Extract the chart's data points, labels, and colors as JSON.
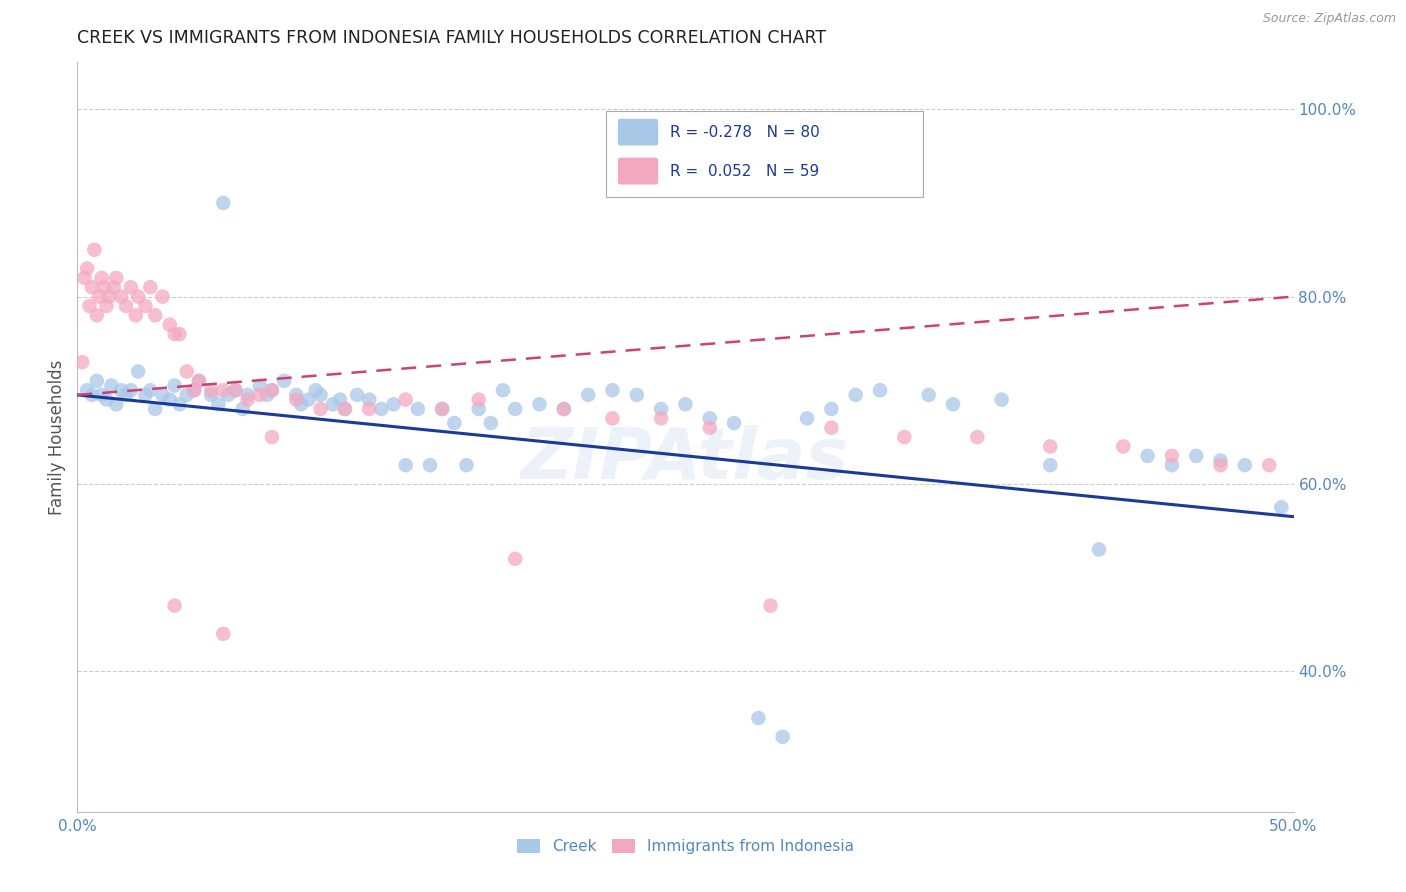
{
  "title": "CREEK VS IMMIGRANTS FROM INDONESIA FAMILY HOUSEHOLDS CORRELATION CHART",
  "source": "Source: ZipAtlas.com",
  "ylabel": "Family Households",
  "xlim": [
    0.0,
    0.5
  ],
  "ylim": [
    0.25,
    1.05
  ],
  "x_ticks": [
    0.0,
    0.1,
    0.2,
    0.3,
    0.4,
    0.5
  ],
  "x_tick_labels": [
    "0.0%",
    "",
    "",
    "",
    "",
    "50.0%"
  ],
  "y_tick_labels_right": [
    "40.0%",
    "60.0%",
    "80.0%",
    "100.0%"
  ],
  "y_ticks_right": [
    0.4,
    0.6,
    0.8,
    1.0
  ],
  "creek_color": "#a8c8e8",
  "indonesia_color": "#f4a8c0",
  "creek_line_color": "#1a3a9a",
  "indonesia_line_color": "#d04070",
  "watermark": "ZIPAtlas",
  "background_color": "#ffffff",
  "grid_color": "#cccccc",
  "right_axis_color": "#5588bb",
  "title_color": "#222222",
  "creek_scatter_x": [
    0.004,
    0.006,
    0.008,
    0.01,
    0.012,
    0.014,
    0.016,
    0.018,
    0.02,
    0.022,
    0.025,
    0.028,
    0.03,
    0.032,
    0.035,
    0.038,
    0.04,
    0.042,
    0.045,
    0.048,
    0.05,
    0.055,
    0.058,
    0.06,
    0.062,
    0.065,
    0.068,
    0.07,
    0.075,
    0.078,
    0.08,
    0.085,
    0.09,
    0.092,
    0.095,
    0.098,
    0.1,
    0.105,
    0.108,
    0.11,
    0.115,
    0.12,
    0.125,
    0.13,
    0.135,
    0.14,
    0.145,
    0.15,
    0.155,
    0.16,
    0.165,
    0.17,
    0.175,
    0.18,
    0.19,
    0.2,
    0.21,
    0.22,
    0.23,
    0.24,
    0.25,
    0.26,
    0.27,
    0.28,
    0.29,
    0.3,
    0.31,
    0.32,
    0.33,
    0.35,
    0.36,
    0.38,
    0.4,
    0.42,
    0.44,
    0.45,
    0.46,
    0.47,
    0.48,
    0.495
  ],
  "creek_scatter_y": [
    0.7,
    0.695,
    0.71,
    0.695,
    0.69,
    0.705,
    0.685,
    0.7,
    0.695,
    0.7,
    0.72,
    0.695,
    0.7,
    0.68,
    0.695,
    0.69,
    0.705,
    0.685,
    0.695,
    0.7,
    0.71,
    0.695,
    0.685,
    0.9,
    0.695,
    0.7,
    0.68,
    0.695,
    0.705,
    0.695,
    0.7,
    0.71,
    0.695,
    0.685,
    0.69,
    0.7,
    0.695,
    0.685,
    0.69,
    0.68,
    0.695,
    0.69,
    0.68,
    0.685,
    0.62,
    0.68,
    0.62,
    0.68,
    0.665,
    0.62,
    0.68,
    0.665,
    0.7,
    0.68,
    0.685,
    0.68,
    0.695,
    0.7,
    0.695,
    0.68,
    0.685,
    0.67,
    0.665,
    0.35,
    0.33,
    0.67,
    0.68,
    0.695,
    0.7,
    0.695,
    0.685,
    0.69,
    0.62,
    0.53,
    0.63,
    0.62,
    0.63,
    0.625,
    0.62,
    0.575
  ],
  "indonesia_scatter_x": [
    0.002,
    0.003,
    0.004,
    0.005,
    0.006,
    0.007,
    0.008,
    0.009,
    0.01,
    0.011,
    0.012,
    0.013,
    0.015,
    0.016,
    0.018,
    0.02,
    0.022,
    0.024,
    0.025,
    0.028,
    0.03,
    0.032,
    0.035,
    0.038,
    0.04,
    0.042,
    0.045,
    0.048,
    0.05,
    0.055,
    0.06,
    0.065,
    0.07,
    0.075,
    0.08,
    0.09,
    0.1,
    0.11,
    0.12,
    0.135,
    0.15,
    0.165,
    0.18,
    0.2,
    0.22,
    0.24,
    0.26,
    0.285,
    0.31,
    0.34,
    0.37,
    0.4,
    0.43,
    0.45,
    0.47,
    0.49,
    0.04,
    0.06,
    0.08
  ],
  "indonesia_scatter_y": [
    0.73,
    0.82,
    0.83,
    0.79,
    0.81,
    0.85,
    0.78,
    0.8,
    0.82,
    0.81,
    0.79,
    0.8,
    0.81,
    0.82,
    0.8,
    0.79,
    0.81,
    0.78,
    0.8,
    0.79,
    0.81,
    0.78,
    0.8,
    0.77,
    0.76,
    0.76,
    0.72,
    0.7,
    0.71,
    0.7,
    0.7,
    0.7,
    0.69,
    0.695,
    0.7,
    0.69,
    0.68,
    0.68,
    0.68,
    0.69,
    0.68,
    0.69,
    0.52,
    0.68,
    0.67,
    0.67,
    0.66,
    0.47,
    0.66,
    0.65,
    0.65,
    0.64,
    0.64,
    0.63,
    0.62,
    0.62,
    0.47,
    0.44,
    0.65
  ]
}
